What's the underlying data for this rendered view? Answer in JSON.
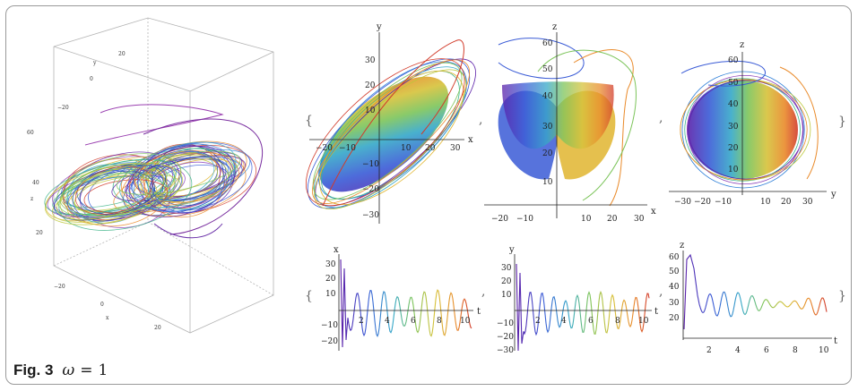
{
  "caption": {
    "label": "Fig. 3",
    "symbol": "ω",
    "equals": "=",
    "value": "1"
  },
  "panel_3d": {
    "axis_y": "y",
    "axis_z": "z",
    "axis_x": "x",
    "y_ticks": [
      "20",
      "0",
      "−20"
    ],
    "z_ticks": [
      "60",
      "40",
      "20"
    ],
    "x_ticks": [
      "−20",
      "0",
      "20"
    ]
  },
  "proj_xy": {
    "xlabel": "x",
    "ylabel": "y",
    "xticks": [
      "−20",
      "−10",
      "10",
      "20",
      "30"
    ],
    "yticks": [
      "30",
      "20",
      "10",
      "−10",
      "−20",
      "−30"
    ]
  },
  "proj_xz": {
    "xlabel": "x",
    "ylabel": "z",
    "xticks": [
      "−20",
      "−10",
      "10",
      "20",
      "30"
    ],
    "yticks": [
      "60",
      "50",
      "40",
      "30",
      "20",
      "10"
    ]
  },
  "proj_yz": {
    "xlabel": "y",
    "ylabel": "z",
    "xticks": [
      "−30",
      "−20",
      "−10",
      "10",
      "20",
      "30"
    ],
    "yticks": [
      "60",
      "50",
      "40",
      "30",
      "20",
      "10"
    ]
  },
  "ts_x": {
    "xlabel": "t",
    "ylabel": "x",
    "xticks": [
      "2",
      "4",
      "6",
      "8",
      "10"
    ],
    "yticks": [
      "30",
      "20",
      "10",
      "−10",
      "−20"
    ]
  },
  "ts_y": {
    "xlabel": "t",
    "ylabel": "y",
    "xticks": [
      "2",
      "4",
      "6",
      "8",
      "10"
    ],
    "yticks": [
      "30",
      "20",
      "10",
      "−10",
      "−20",
      "−30"
    ]
  },
  "ts_z": {
    "xlabel": "t",
    "ylabel": "z",
    "xticks": [
      "2",
      "4",
      "6",
      "8",
      "10"
    ],
    "yticks": [
      "60",
      "50",
      "40",
      "30",
      "20"
    ]
  },
  "separators": {
    "open": "{",
    "close": "}",
    "comma": ","
  },
  "colors": {
    "frame": "#9a9a9a",
    "axis": "#222222",
    "box": "#b5b5b5"
  }
}
